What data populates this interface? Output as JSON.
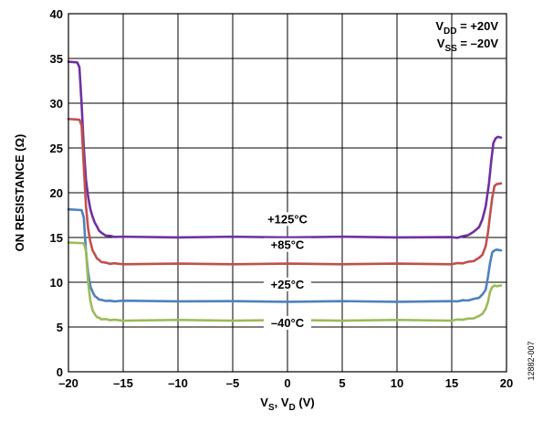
{
  "chart_data": {
    "type": "line",
    "title": "",
    "ylabel": "ON RESISTANCE (Ω)",
    "xlabel": {
      "v1": "V",
      "s1": "S",
      "sep": ", ",
      "v2": "V",
      "s2": "D",
      "unit": " (V)"
    },
    "xlim": [
      -20,
      20
    ],
    "ylim": [
      0,
      40
    ],
    "xticks": [
      -20,
      -15,
      -10,
      -5,
      0,
      5,
      10,
      15,
      20
    ],
    "xtick_labels": [
      "–20",
      "–15",
      "–10",
      "–5",
      "0",
      "5",
      "10",
      "15",
      "20"
    ],
    "yticks": [
      0,
      5,
      10,
      15,
      20,
      25,
      30,
      35,
      40
    ],
    "ytick_labels": [
      "0",
      "5",
      "10",
      "15",
      "20",
      "25",
      "30",
      "35",
      "40"
    ],
    "grid": true,
    "conditions": [
      {
        "name": "V",
        "sub": "DD",
        "value": " = +20V"
      },
      {
        "name": "V",
        "sub": "SS",
        "value": " = –20V"
      }
    ],
    "figure_id": "12882-007",
    "series": [
      {
        "name": "+125°C",
        "color": "#7030a0",
        "label_at": [
          0,
          16.6
        ],
        "x": [
          -20,
          -19.2,
          -19.0,
          -18.8,
          -18.6,
          -18.4,
          -18.2,
          -18.0,
          -17.8,
          -17.6,
          -17.4,
          -17.2,
          -17.0,
          -16.6,
          -16.2,
          -15.8,
          -15,
          -10,
          -5,
          0,
          5,
          10,
          15,
          15.5,
          16.0,
          16.5,
          17.0,
          17.5,
          17.8,
          18.1,
          18.4,
          18.6,
          18.8,
          19.0,
          19.2,
          19.5
        ],
        "y": [
          34.6,
          34.6,
          34.0,
          30.0,
          25.0,
          21.5,
          19.5,
          18.2,
          17.3,
          16.7,
          16.2,
          15.8,
          15.5,
          15.25,
          15.15,
          15.1,
          15.05,
          15.05,
          15.05,
          15.05,
          15.05,
          15.05,
          15.0,
          15.0,
          15.1,
          15.3,
          15.6,
          16.2,
          17.0,
          18.5,
          21.0,
          23.5,
          25.5,
          26.1,
          26.2,
          26.2
        ]
      },
      {
        "name": "+85°C",
        "color": "#c0504d",
        "label_at": [
          0,
          13.7
        ],
        "x": [
          -20,
          -19.0,
          -18.8,
          -18.6,
          -18.4,
          -18.2,
          -18.0,
          -17.8,
          -17.6,
          -17.4,
          -17.2,
          -17.0,
          -16.6,
          -16.2,
          -15.8,
          -15,
          -10,
          -5,
          0,
          5,
          10,
          15,
          15.5,
          16.0,
          16.5,
          17.0,
          17.5,
          17.8,
          18.1,
          18.3,
          18.5,
          18.7,
          18.9,
          19.1,
          19.5
        ],
        "y": [
          28.2,
          28.2,
          27.5,
          23.0,
          18.5,
          16.0,
          14.5,
          13.6,
          13.1,
          12.7,
          12.45,
          12.3,
          12.15,
          12.1,
          12.08,
          12.05,
          12.05,
          12.05,
          12.05,
          12.05,
          12.05,
          12.05,
          12.1,
          12.15,
          12.25,
          12.4,
          12.7,
          13.1,
          14.0,
          15.5,
          17.5,
          19.5,
          20.7,
          21.0,
          21.0
        ]
      },
      {
        "name": "+25°C",
        "color": "#4f81bd",
        "label_at": [
          0,
          9.3
        ],
        "x": [
          -20,
          -18.8,
          -18.6,
          -18.4,
          -18.2,
          -18.0,
          -17.8,
          -17.6,
          -17.4,
          -17.2,
          -17.0,
          -16.6,
          -16.2,
          -15.8,
          -15,
          -10,
          -5,
          0,
          5,
          10,
          15,
          15.5,
          16.0,
          16.5,
          17.0,
          17.5,
          17.8,
          18.1,
          18.3,
          18.5,
          18.7,
          18.9,
          19.1,
          19.5
        ],
        "y": [
          18.1,
          18.1,
          17.2,
          13.5,
          11.0,
          9.6,
          8.9,
          8.5,
          8.25,
          8.1,
          8.0,
          7.95,
          7.9,
          7.9,
          7.9,
          7.9,
          7.85,
          7.85,
          7.85,
          7.85,
          7.85,
          7.9,
          7.95,
          8.0,
          8.1,
          8.3,
          8.6,
          9.2,
          10.5,
          12.2,
          13.3,
          13.6,
          13.6,
          13.6
        ]
      },
      {
        "name": "–40°C",
        "color": "#9bbb59",
        "label_at": [
          0,
          5.0
        ],
        "x": [
          -20,
          -18.6,
          -18.4,
          -18.2,
          -18.0,
          -17.8,
          -17.6,
          -17.4,
          -17.2,
          -17.0,
          -16.6,
          -16.2,
          -15.8,
          -15,
          -10,
          -5,
          0,
          5,
          10,
          15,
          15.5,
          16.0,
          16.5,
          17.0,
          17.5,
          17.8,
          18.1,
          18.3,
          18.5,
          18.7,
          18.9,
          19.1,
          19.5
        ],
        "y": [
          14.4,
          14.4,
          13.5,
          10.0,
          7.9,
          6.9,
          6.4,
          6.15,
          6.0,
          5.9,
          5.85,
          5.8,
          5.78,
          5.75,
          5.75,
          5.75,
          5.75,
          5.75,
          5.75,
          5.75,
          5.8,
          5.85,
          5.9,
          6.0,
          6.2,
          6.5,
          7.0,
          7.8,
          8.9,
          9.5,
          9.6,
          9.6,
          9.6
        ]
      }
    ]
  }
}
